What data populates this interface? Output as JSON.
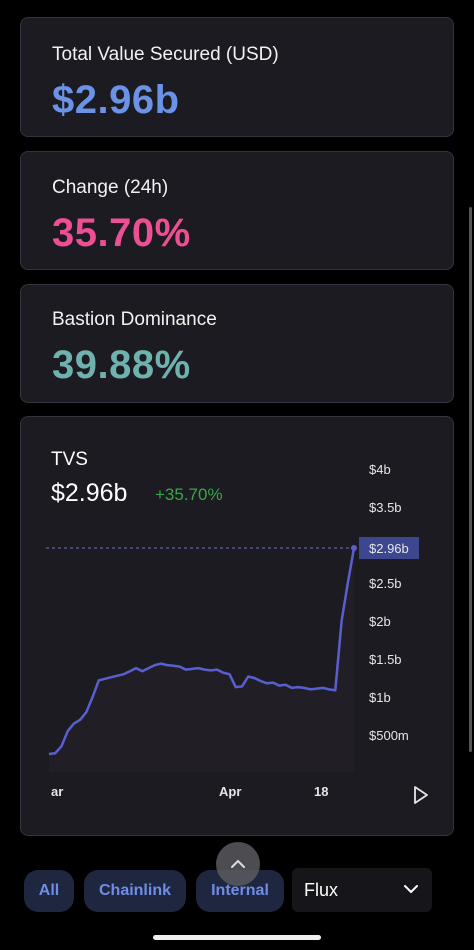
{
  "stats": [
    {
      "label": "Total Value Secured (USD)",
      "value": "$2.96b",
      "color": "#6b92e6"
    },
    {
      "label": "Change (24h)",
      "value": "35.70%",
      "color": "#ec4f93"
    },
    {
      "label": "Bastion Dominance",
      "value": "39.88%",
      "color": "#6fb1ad"
    }
  ],
  "tvs_card": {
    "title": "TVS",
    "value": "$2.96b",
    "change": "+35.70%",
    "change_color": "#3aa64a",
    "line_color": "#5a5fd0",
    "current_label": "$2.96b",
    "play_icon": "play-icon"
  },
  "chart_data": {
    "type": "area",
    "y_ticks": [
      "$4b",
      "$3.5b",
      "$2.96b",
      "$2.5b",
      "$2b",
      "$1.5b",
      "$1b",
      "$500m"
    ],
    "x_ticks": [
      "ar",
      "Apr",
      "18"
    ],
    "ylim": [
      0,
      4000000000
    ],
    "current_value": 2960000000,
    "series": [
      {
        "values": [
          250000000,
          260000000,
          350000000,
          550000000,
          650000000,
          700000000,
          800000000,
          1000000000,
          1220000000,
          1240000000,
          1260000000,
          1280000000,
          1300000000,
          1340000000,
          1380000000,
          1340000000,
          1380000000,
          1420000000,
          1440000000,
          1420000000,
          1410000000,
          1400000000,
          1360000000,
          1370000000,
          1380000000,
          1360000000,
          1350000000,
          1360000000,
          1320000000,
          1300000000,
          1130000000,
          1140000000,
          1270000000,
          1250000000,
          1210000000,
          1180000000,
          1190000000,
          1150000000,
          1160000000,
          1120000000,
          1130000000,
          1120000000,
          1100000000,
          1110000000,
          1120000000,
          1100000000,
          1090000000,
          2000000000,
          2500000000,
          2960000000
        ]
      }
    ]
  },
  "filters": {
    "chips": [
      "All",
      "Chainlink",
      "Internal"
    ],
    "select_value": "Flux"
  }
}
